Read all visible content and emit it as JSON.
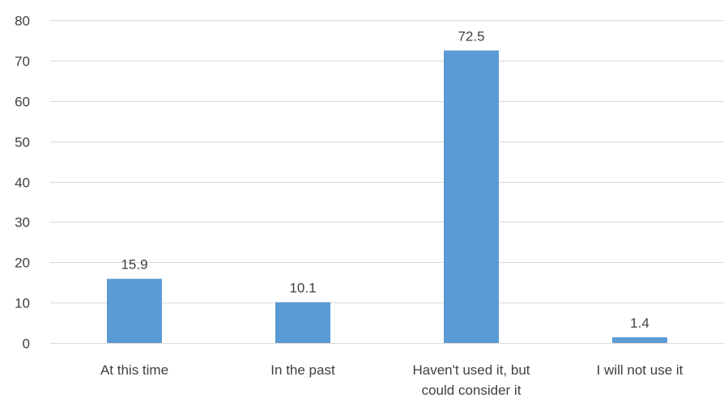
{
  "chart_data": {
    "type": "bar",
    "categories": [
      [
        "At this time"
      ],
      [
        "In the past"
      ],
      [
        "Haven't used it, but",
        "could consider it"
      ],
      [
        "I will not use it"
      ]
    ],
    "values": [
      15.9,
      10.1,
      72.5,
      1.4
    ],
    "data_labels": [
      "15.9",
      "10.1",
      "72.5",
      "1.4"
    ],
    "ylim": [
      0,
      80
    ],
    "yticks": [
      0,
      10,
      20,
      30,
      40,
      50,
      60,
      70,
      80
    ],
    "grid": true,
    "legend": "none",
    "colors": {
      "bar": "#5B9BD5",
      "grid": "#D9D9D9",
      "text": "#404040"
    }
  }
}
